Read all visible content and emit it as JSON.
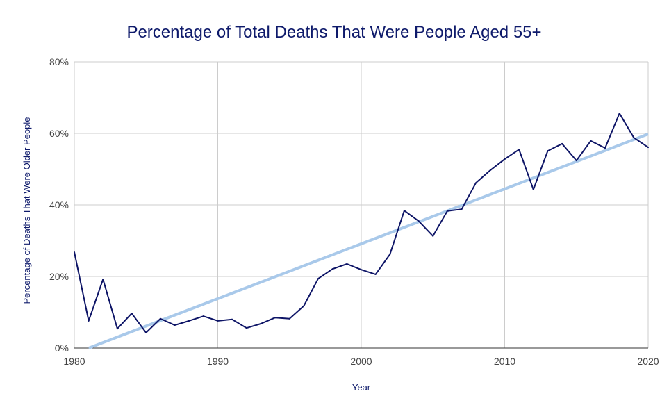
{
  "chart_data": {
    "type": "line",
    "title": "Percentage of Total Deaths That Were People Aged 55+",
    "xlabel": "Year",
    "ylabel": "Percentage of Deaths That Were Older People",
    "xlim": [
      1980,
      2020
    ],
    "ylim": [
      0,
      80
    ],
    "x_ticks": [
      "1980",
      "1990",
      "2000",
      "2010",
      "2020"
    ],
    "y_ticks": [
      "0%",
      "20%",
      "40%",
      "60%",
      "80%"
    ],
    "grid": true,
    "colors": {
      "series": "#0d1466",
      "trendline": "#a9c9ea",
      "grid": "#cccccc"
    },
    "x": [
      1980,
      1981,
      1982,
      1983,
      1984,
      1985,
      1986,
      1987,
      1988,
      1989,
      1990,
      1991,
      1992,
      1993,
      1994,
      1995,
      1996,
      1997,
      1998,
      1999,
      2000,
      2001,
      2002,
      2003,
      2004,
      2005,
      2006,
      2007,
      2008,
      2009,
      2010,
      2011,
      2012,
      2013,
      2014,
      2015,
      2016,
      2017,
      2018,
      2019,
      2020
    ],
    "series": [
      {
        "name": "Percentage of Deaths That Were Older People",
        "values": [
          26.8,
          7.6,
          19.2,
          5.4,
          9.7,
          4.3,
          8.2,
          6.4,
          7.6,
          8.9,
          7.6,
          8.0,
          5.6,
          6.8,
          8.5,
          8.2,
          11.8,
          19.4,
          22.1,
          23.5,
          21.9,
          20.6,
          26.2,
          38.4,
          35.5,
          31.3,
          38.3,
          38.8,
          46.2,
          49.7,
          52.8,
          55.5,
          44.3,
          55.1,
          57.1,
          52.4,
          57.9,
          55.9,
          65.6,
          58.8,
          56.1
        ]
      }
    ],
    "trendline": {
      "type": "linear",
      "start": [
        1981,
        0
      ],
      "end": [
        2020,
        59.8
      ]
    }
  }
}
